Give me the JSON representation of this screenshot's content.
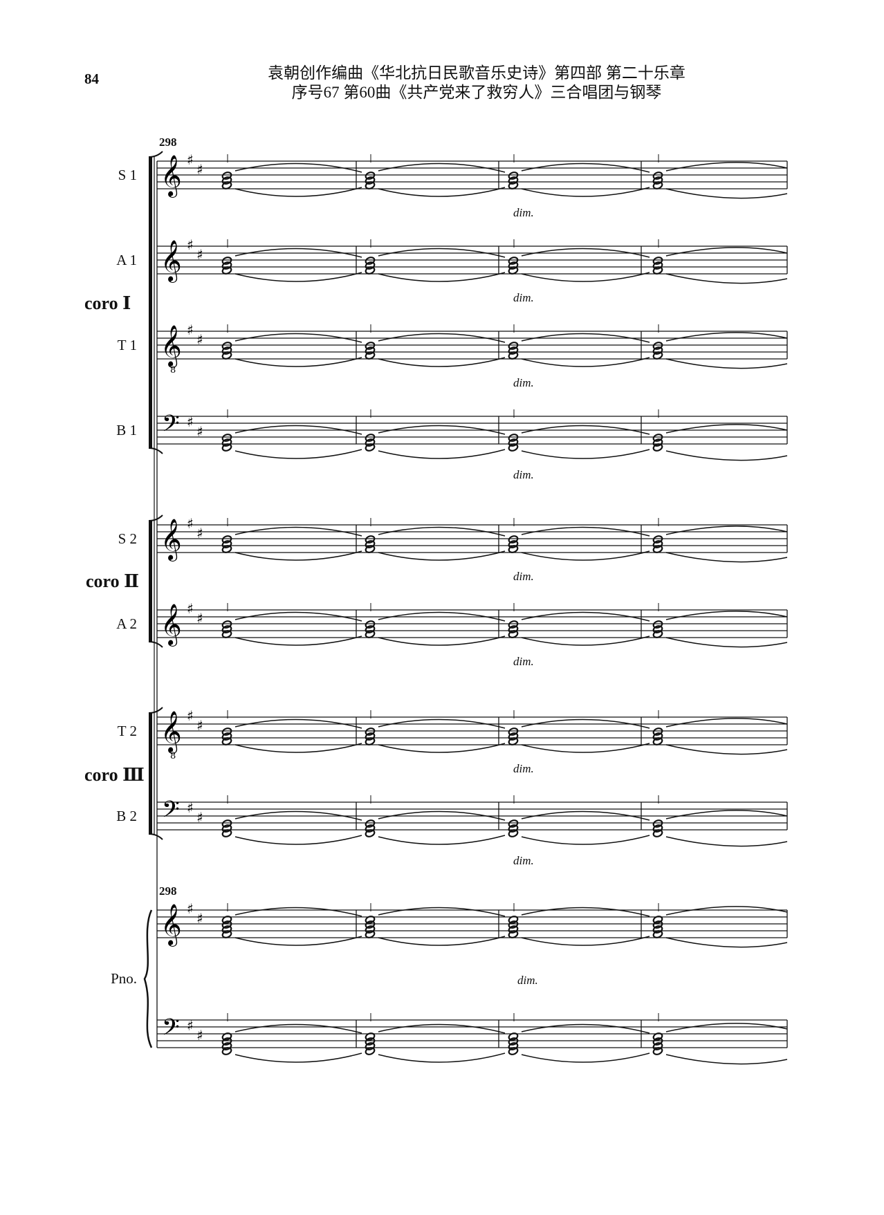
{
  "page_number": "84",
  "header": {
    "line1": "袁朝创作编曲《华北抗日民歌音乐史诗》第四部  第二十乐章",
    "line2": "序号67    第60曲《共产党来了救穷人》三合唱团与钢琴"
  },
  "measure_number": "298",
  "key_signature": "D major (2 sharps)",
  "dynamic": "dim.",
  "choirs": [
    {
      "label": "coro Ⅰ"
    },
    {
      "label": "coro Ⅱ"
    },
    {
      "label": "coro Ⅲ"
    }
  ],
  "staves": [
    {
      "label": "S 1",
      "clef": "treble"
    },
    {
      "label": "A 1",
      "clef": "treble"
    },
    {
      "label": "T 1",
      "clef": "treble-8"
    },
    {
      "label": "B 1",
      "clef": "bass"
    },
    {
      "label": "S 2",
      "clef": "treble"
    },
    {
      "label": "A 2",
      "clef": "treble"
    },
    {
      "label": "T 2",
      "clef": "treble-8"
    },
    {
      "label": "B 2",
      "clef": "bass"
    }
  ],
  "piano": {
    "label": "Pno.",
    "staves": [
      "treble",
      "bass"
    ]
  },
  "measures_shown": 4
}
